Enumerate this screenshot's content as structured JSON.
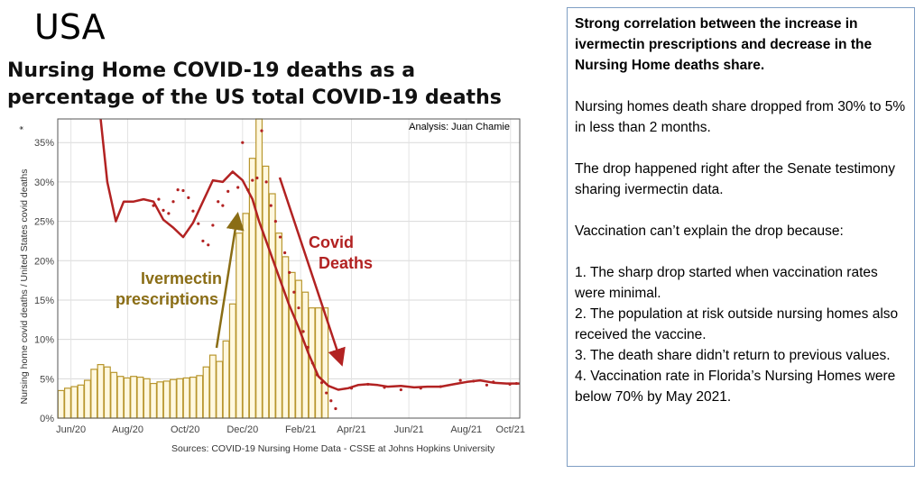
{
  "heading": "USA",
  "title": "Nursing Home COVID-19 deaths as a percentage of the US total COVID-19 deaths",
  "source": "Sources: COVID-19 Nursing Home Data - CSSE at Johns Hopkins University",
  "notes": {
    "lead": "Strong correlation between the increase in ivermectin prescriptions and decrease in the Nursing Home deaths share.",
    "p1": "Nursing homes death share dropped from 30% to 5% in less than 2 months.",
    "p2": "The drop happened right after the Senate testimony sharing ivermectin data.",
    "p3": "Vaccination can’t explain the drop because:",
    "items": [
      "1. The sharp drop started when vaccination rates were minimal.",
      "2. The population at risk outside nursing homes also received the vaccine.",
      "3. The death share didn’t return to previous values.",
      "4. Vaccination rate in Florida’s Nursing Homes were below 70% by May 2021."
    ]
  },
  "chart_data": {
    "type": "bar",
    "ylabel": "Nursing home covid deaths / United States covid deaths",
    "ylabel_marker": "*",
    "analysis_label": "Analysis:  Juan Chamie",
    "ylim": [
      0,
      38
    ],
    "yticks": [
      "0%",
      "5%",
      "10%",
      "15%",
      "20%",
      "25%",
      "30%",
      "35%"
    ],
    "xlim": [
      0,
      70
    ],
    "xticks": [
      {
        "x": 2,
        "label": "Jun/20"
      },
      {
        "x": 10.6,
        "label": "Aug/20"
      },
      {
        "x": 19.3,
        "label": "Oct/20"
      },
      {
        "x": 28,
        "label": "Dec/20"
      },
      {
        "x": 36.8,
        "label": "Feb/21"
      },
      {
        "x": 44.5,
        "label": "Apr/21"
      },
      {
        "x": 53.2,
        "label": "Jun/21"
      },
      {
        "x": 61.9,
        "label": "Aug/21"
      },
      {
        "x": 68.6,
        "label": "Oct/21"
      }
    ],
    "bar_color": "#b8962e",
    "line_color": "#b22222",
    "grid": true,
    "series": [
      {
        "name": "Ivermectin prescriptions",
        "kind": "bar",
        "values": [
          3.5,
          3.8,
          4.0,
          4.2,
          4.8,
          6.2,
          6.8,
          6.5,
          5.8,
          5.3,
          5.1,
          5.3,
          5.2,
          5.0,
          4.4,
          4.6,
          4.7,
          4.9,
          5.0,
          5.1,
          5.2,
          5.4,
          6.5,
          8.0,
          7.2,
          9.8,
          14.5,
          23.5,
          26.0,
          33.0,
          38.0,
          32.0,
          28.5,
          23.5,
          20.5,
          18.5,
          17.5,
          16.0,
          14.0,
          14.0,
          14.0
        ]
      },
      {
        "name": "Covid Deaths",
        "kind": "line",
        "x": [
          6.5,
          7.5,
          8.8,
          10,
          11.5,
          13,
          14.5,
          16,
          17.5,
          19,
          20.5,
          22,
          23.5,
          25,
          26.5,
          28,
          29.5,
          30.5,
          32,
          33.5,
          35,
          36.5,
          38,
          39.5,
          41,
          42.5,
          44,
          45.5,
          47,
          48.5,
          50,
          52,
          54,
          56,
          58,
          60,
          62,
          64,
          66,
          68,
          70
        ],
        "y": [
          38.5,
          30,
          25,
          27.5,
          27.5,
          27.8,
          27.5,
          25.2,
          24.2,
          23,
          24.8,
          27.5,
          30.2,
          30,
          31.3,
          30.2,
          27.8,
          25,
          21.5,
          18,
          14.5,
          11.5,
          8.2,
          5.3,
          4.1,
          3.6,
          3.8,
          4.2,
          4.3,
          4.2,
          4.0,
          4.1,
          3.9,
          4.0,
          4.0,
          4.3,
          4.6,
          4.8,
          4.5,
          4.4,
          4.4
        ]
      },
      {
        "kind": "scatter",
        "color": "#b22222",
        "x": [
          14.5,
          15.3,
          16,
          16.8,
          17.5,
          18.2,
          19,
          19.8,
          20.5,
          21.3,
          22,
          22.8,
          23.5,
          24.3,
          25,
          25.8,
          26.5,
          27.3,
          28,
          28.8,
          29.5,
          30.2,
          30.9,
          31.6,
          32.3,
          33,
          33.7,
          34.4,
          35.1,
          35.8,
          36.5,
          37.2,
          37.9,
          38.6,
          39.3,
          40,
          40.7,
          41.4,
          42.1,
          44.5,
          47,
          49.5,
          52,
          55,
          58,
          61,
          63,
          65,
          66,
          68.5,
          69.5
        ],
        "y": [
          27,
          27.8,
          26.4,
          26,
          27.5,
          29,
          28.9,
          28,
          26.3,
          24.7,
          22.5,
          22,
          24.5,
          27.5,
          27,
          28.8,
          31.2,
          29.3,
          35,
          29,
          30.2,
          30.5,
          36.5,
          30,
          27,
          25,
          23,
          21,
          18.5,
          16,
          14,
          11,
          9,
          7,
          5.5,
          4.5,
          3.2,
          2.2,
          1.2,
          3.8,
          4.3,
          3.9,
          3.6,
          3.8,
          4.0,
          4.8,
          4.7,
          4.2,
          4.6,
          4.3,
          4.4
        ]
      }
    ],
    "annotations": [
      {
        "text": "Ivermectin",
        "color": "#8a6d15"
      },
      {
        "text": "prescriptions",
        "color": "#8a6d15"
      },
      {
        "text": "Covid",
        "color": "#b22222"
      },
      {
        "text": "Deaths",
        "color": "#b22222"
      }
    ]
  }
}
